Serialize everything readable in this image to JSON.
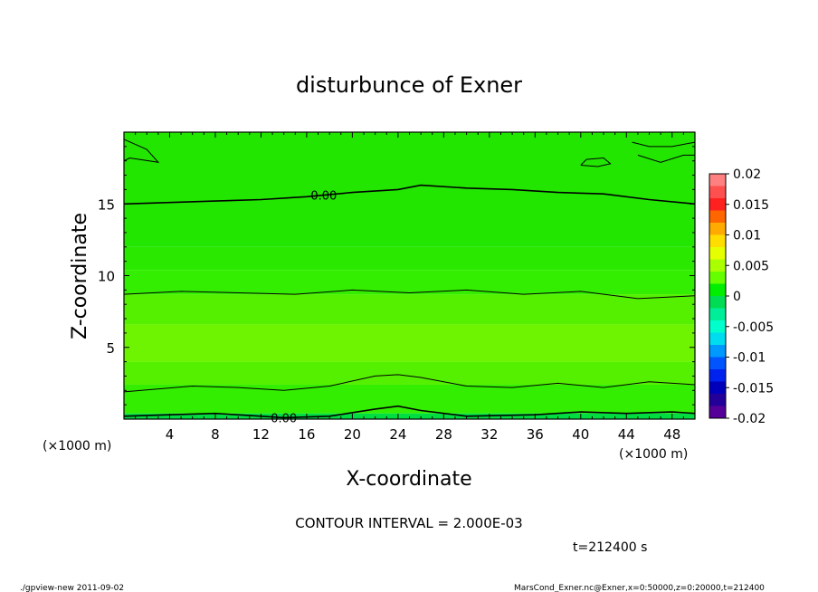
{
  "chart_data": {
    "type": "heatmap",
    "title": "disturbunce of Exner",
    "xlabel": "X-coordinate",
    "ylabel": "Z-coordinate",
    "x_unit": "(×1000 m)",
    "y_unit": "(×1000 m)",
    "xlim": [
      0,
      50
    ],
    "ylim": [
      0,
      20
    ],
    "x_ticks": [
      4,
      8,
      12,
      16,
      20,
      24,
      28,
      32,
      36,
      40,
      44,
      48
    ],
    "y_ticks": [
      5,
      10,
      15
    ],
    "colorbar": {
      "ticks": [
        "0.02",
        "0.015",
        "0.01",
        "0.005",
        "0",
        "-0.005",
        "-0.01",
        "-0.015",
        "-0.02"
      ],
      "range": [
        -0.02,
        0.02
      ],
      "colors": [
        "#ff8080",
        "#ff5050",
        "#ff2020",
        "#ff6600",
        "#ffaa00",
        "#ffdd00",
        "#e6ff00",
        "#aaff00",
        "#66ff00",
        "#00ee00",
        "#00dd55",
        "#00ee99",
        "#00ffcc",
        "#00ddee",
        "#0099ff",
        "#0055ff",
        "#0022ee",
        "#0000bb",
        "#220099",
        "#550099"
      ]
    },
    "field": {
      "bands": [
        {
          "z_range": [
            0,
            0.4
          ],
          "color": "#00dd40"
        },
        {
          "z_range": [
            0.4,
            2.4
          ],
          "color": "#33ee00"
        },
        {
          "z_range": [
            2.4,
            4.0
          ],
          "color": "#55f000"
        },
        {
          "z_range": [
            4.0,
            6.6
          ],
          "color": "#6ef400"
        },
        {
          "z_range": [
            6.6,
            8.7
          ],
          "color": "#55f000"
        },
        {
          "z_range": [
            8.7,
            10.4
          ],
          "color": "#33ee00"
        },
        {
          "z_range": [
            10.4,
            12.0
          ],
          "color": "#2ae800"
        },
        {
          "z_range": [
            12.0,
            20.0
          ],
          "color": "#22e600"
        }
      ]
    },
    "contours": [
      {
        "label": "0.00",
        "label_at": [
          14,
          0.1
        ],
        "points": [
          [
            0,
            0.2
          ],
          [
            4,
            0.3
          ],
          [
            8,
            0.4
          ],
          [
            12,
            0.2
          ],
          [
            14,
            0.1
          ],
          [
            18,
            0.2
          ],
          [
            22,
            0.7
          ],
          [
            24,
            0.9
          ],
          [
            26,
            0.6
          ],
          [
            30,
            0.2
          ],
          [
            36,
            0.3
          ],
          [
            40,
            0.5
          ],
          [
            44,
            0.4
          ],
          [
            48,
            0.5
          ],
          [
            50,
            0.4
          ]
        ]
      },
      {
        "points": [
          [
            0,
            1.9
          ],
          [
            6,
            2.3
          ],
          [
            10,
            2.2
          ],
          [
            14,
            2.0
          ],
          [
            18,
            2.3
          ],
          [
            22,
            3.0
          ],
          [
            24,
            3.1
          ],
          [
            26,
            2.9
          ],
          [
            30,
            2.3
          ],
          [
            34,
            2.2
          ],
          [
            38,
            2.5
          ],
          [
            42,
            2.2
          ],
          [
            46,
            2.6
          ],
          [
            50,
            2.4
          ]
        ]
      },
      {
        "points": [
          [
            0,
            8.7
          ],
          [
            5,
            8.9
          ],
          [
            10,
            8.8
          ],
          [
            15,
            8.7
          ],
          [
            20,
            9.0
          ],
          [
            25,
            8.8
          ],
          [
            30,
            9.0
          ],
          [
            35,
            8.7
          ],
          [
            40,
            8.9
          ],
          [
            45,
            8.4
          ],
          [
            50,
            8.6
          ]
        ]
      },
      {
        "label": "0.00",
        "label_at": [
          17.5,
          15.6
        ],
        "points": [
          [
            0,
            15.0
          ],
          [
            4,
            15.1
          ],
          [
            8,
            15.2
          ],
          [
            12,
            15.3
          ],
          [
            16,
            15.5
          ],
          [
            20,
            15.8
          ],
          [
            24,
            16.0
          ],
          [
            26,
            16.3
          ],
          [
            30,
            16.1
          ],
          [
            34,
            16.0
          ],
          [
            38,
            15.8
          ],
          [
            42,
            15.7
          ],
          [
            46,
            15.3
          ],
          [
            50,
            15.0
          ]
        ]
      },
      {
        "points": [
          [
            0,
            19.5
          ],
          [
            2,
            18.8
          ],
          [
            3,
            17.9
          ],
          [
            0.5,
            18.2
          ],
          [
            0,
            18.0
          ]
        ]
      },
      {
        "points": [
          [
            40.0,
            17.7
          ],
          [
            40.5,
            18.1
          ],
          [
            42.0,
            18.2
          ],
          [
            42.6,
            17.8
          ],
          [
            41.5,
            17.6
          ],
          [
            40.0,
            17.7
          ]
        ]
      },
      {
        "points": [
          [
            45,
            18.4
          ],
          [
            47,
            17.9
          ],
          [
            49,
            18.4
          ],
          [
            50,
            18.4
          ]
        ]
      },
      {
        "points": [
          [
            44.5,
            19.3
          ],
          [
            46,
            19.0
          ],
          [
            48,
            19.0
          ],
          [
            50,
            19.3
          ]
        ]
      }
    ]
  },
  "annotations": {
    "contour_interval": "CONTOUR INTERVAL = 2.000E-03",
    "time": "t=212400 s",
    "footer_left": "./gpview-new  2011-09-02",
    "footer_right": "MarsCond_Exner.nc@Exner,x=0:50000,z=0:20000,t=212400"
  }
}
